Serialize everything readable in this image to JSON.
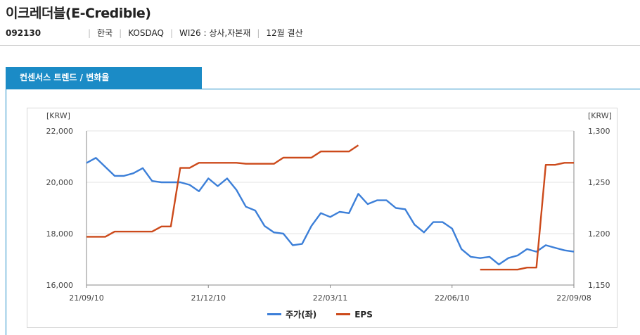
{
  "header": {
    "title": "이크레더블(E-Credible)",
    "code": "092130",
    "country": "한국",
    "market": "KOSDAQ",
    "industry": "WI26 : 상사,자본재",
    "fiscal": "12월 결산"
  },
  "tab": {
    "label": "컨센서스 트렌드 / 변화율"
  },
  "chart_data": {
    "type": "line",
    "left_axis": {
      "unit": "[KRW]",
      "ylim": [
        16000,
        22000
      ],
      "ticks": [
        "16,000",
        "18,000",
        "20,000",
        "22,000"
      ]
    },
    "right_axis": {
      "unit": "[KRW]",
      "ylim": [
        1150,
        1300
      ],
      "ticks": [
        "1,150",
        "1,200",
        "1,250",
        "1,300"
      ]
    },
    "x_tick_labels": [
      "21/09/10",
      "21/12/10",
      "22/03/11",
      "22/06/10",
      "22/09/08"
    ],
    "grid": true,
    "legend": "bottom",
    "series": [
      {
        "name": "주가(좌)",
        "axis": "left",
        "color": "#3c7fd8",
        "points": [
          [
            0,
            20750
          ],
          [
            1,
            20950
          ],
          [
            2,
            20600
          ],
          [
            3,
            20250
          ],
          [
            4,
            20250
          ],
          [
            5,
            20350
          ],
          [
            6,
            20550
          ],
          [
            7,
            20050
          ],
          [
            8,
            20000
          ],
          [
            9,
            20000
          ],
          [
            10,
            20000
          ],
          [
            11,
            19900
          ],
          [
            12,
            19650
          ],
          [
            13,
            20150
          ],
          [
            14,
            19850
          ],
          [
            15,
            20150
          ],
          [
            16,
            19700
          ],
          [
            17,
            19050
          ],
          [
            18,
            18900
          ],
          [
            19,
            18300
          ],
          [
            20,
            18050
          ],
          [
            21,
            18000
          ],
          [
            22,
            17550
          ],
          [
            23,
            17600
          ],
          [
            24,
            18300
          ],
          [
            25,
            18800
          ],
          [
            26,
            18650
          ],
          [
            27,
            18850
          ],
          [
            28,
            18800
          ],
          [
            29,
            19550
          ],
          [
            30,
            19150
          ],
          [
            31,
            19300
          ],
          [
            32,
            19300
          ],
          [
            33,
            19000
          ],
          [
            34,
            18950
          ],
          [
            35,
            18350
          ],
          [
            36,
            18050
          ],
          [
            37,
            18450
          ],
          [
            38,
            18450
          ],
          [
            39,
            18200
          ],
          [
            40,
            17400
          ],
          [
            41,
            17100
          ],
          [
            42,
            17050
          ],
          [
            43,
            17100
          ],
          [
            44,
            16800
          ],
          [
            45,
            17050
          ],
          [
            46,
            17150
          ],
          [
            47,
            17400
          ],
          [
            48,
            17300
          ],
          [
            49,
            17550
          ],
          [
            50,
            17450
          ],
          [
            51,
            17350
          ],
          [
            52,
            17300
          ]
        ]
      },
      {
        "name": "EPS",
        "axis": "right",
        "color": "#cc4a1b",
        "segments": [
          [
            [
              0,
              1197
            ],
            [
              1,
              1197
            ],
            [
              2,
              1197
            ],
            [
              3,
              1202
            ],
            [
              4,
              1202
            ],
            [
              5,
              1202
            ],
            [
              6,
              1202
            ],
            [
              7,
              1202
            ],
            [
              8,
              1207
            ],
            [
              9,
              1207
            ],
            [
              10,
              1264
            ],
            [
              11,
              1264
            ],
            [
              12,
              1269
            ],
            [
              13,
              1269
            ],
            [
              14,
              1269
            ],
            [
              15,
              1269
            ],
            [
              16,
              1269
            ],
            [
              17,
              1268
            ],
            [
              18,
              1268
            ],
            [
              19,
              1268
            ],
            [
              20,
              1268
            ],
            [
              21,
              1274
            ],
            [
              22,
              1274
            ],
            [
              23,
              1274
            ],
            [
              24,
              1274
            ],
            [
              25,
              1280
            ],
            [
              26,
              1280
            ],
            [
              27,
              1280
            ],
            [
              28,
              1280
            ],
            [
              29,
              1286
            ]
          ],
          [
            [
              42,
              1165
            ],
            [
              43,
              1165
            ],
            [
              44,
              1165
            ],
            [
              45,
              1165
            ],
            [
              46,
              1165
            ],
            [
              47,
              1167
            ],
            [
              48,
              1167
            ],
            [
              49,
              1267
            ],
            [
              50,
              1267
            ],
            [
              51,
              1269
            ],
            [
              52,
              1269
            ]
          ]
        ]
      }
    ]
  }
}
